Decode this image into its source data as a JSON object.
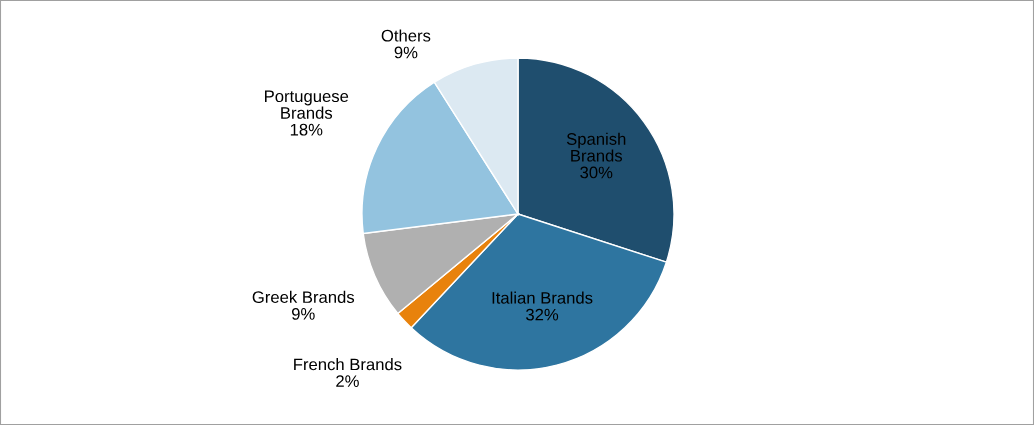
{
  "chart_data": {
    "type": "pie",
    "categories": [
      "Spanish Brands",
      "Italian Brands",
      "French Brands",
      "Greek Brands",
      "Portuguese Brands",
      "Others"
    ],
    "values": [
      30,
      32,
      2,
      9,
      18,
      9
    ],
    "colors": [
      "#1f4e6e",
      "#2e75a0",
      "#e8820c",
      "#b0b0b0",
      "#93c3df",
      "#dce9f2"
    ],
    "value_labels": [
      "30%",
      "32%",
      "2%",
      "9%",
      "18%",
      "9%"
    ]
  }
}
